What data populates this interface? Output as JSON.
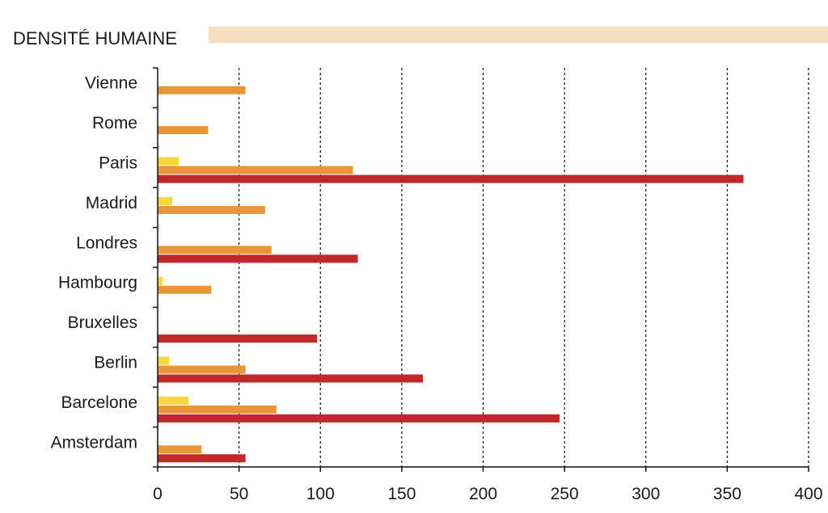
{
  "title": "DENSITÉ HUMAINE",
  "colors": {
    "title_band": "#f6dfc0",
    "axis": "#111111",
    "grid": "#111111"
  },
  "chart_data": {
    "type": "bar",
    "orientation": "horizontal",
    "title": "DENSITÉ HUMAINE",
    "xlabel": "",
    "ylabel": "",
    "xlim": [
      0,
      400
    ],
    "xticks": [
      0,
      50,
      100,
      150,
      200,
      250,
      300,
      350,
      400
    ],
    "grid": "vertical dashed",
    "legend": "none",
    "categories": [
      "Vienne",
      "Rome",
      "Paris",
      "Madrid",
      "Londres",
      "Hambourg",
      "Bruxelles",
      "Berlin",
      "Barcelone",
      "Amsterdam"
    ],
    "series": [
      {
        "color": "#f7d73b",
        "values": [
          0,
          0,
          13,
          9,
          0,
          3,
          0,
          7,
          19,
          0
        ]
      },
      {
        "color": "#e8963a",
        "values": [
          54,
          31,
          120,
          66,
          70,
          33,
          0,
          54,
          73,
          27
        ]
      },
      {
        "color": "#c0282a",
        "values": [
          0,
          0,
          360,
          0,
          123,
          0,
          98,
          163,
          247,
          54
        ]
      }
    ]
  }
}
